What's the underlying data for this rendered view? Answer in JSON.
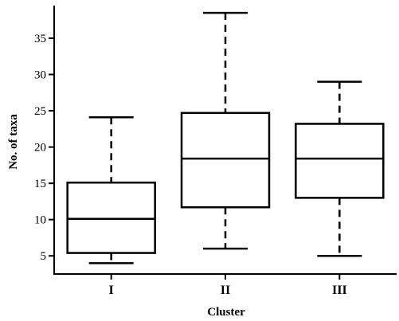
{
  "chart_data": {
    "type": "box",
    "title": "",
    "xlabel": "Cluster",
    "ylabel": "No. of taxa",
    "ylim": [
      2.5,
      39.5
    ],
    "yticks": [
      5,
      10,
      15,
      20,
      25,
      30,
      35
    ],
    "ytick_labels": [
      "5",
      "10",
      "15",
      "20",
      "25",
      "30",
      "35"
    ],
    "categories": [
      "I",
      "II",
      "III"
    ],
    "boxes": [
      {
        "category": "I",
        "min": 4,
        "q1": 5.4,
        "median": 10.1,
        "q3": 15.1,
        "max": 24.1
      },
      {
        "category": "II",
        "min": 6,
        "q1": 11.7,
        "median": 18.4,
        "q3": 24.7,
        "max": 38.5
      },
      {
        "category": "III",
        "min": 5,
        "q1": 13.0,
        "median": 18.4,
        "q3": 23.2,
        "max": 29.0
      }
    ],
    "grid": false,
    "color": "#000000"
  }
}
